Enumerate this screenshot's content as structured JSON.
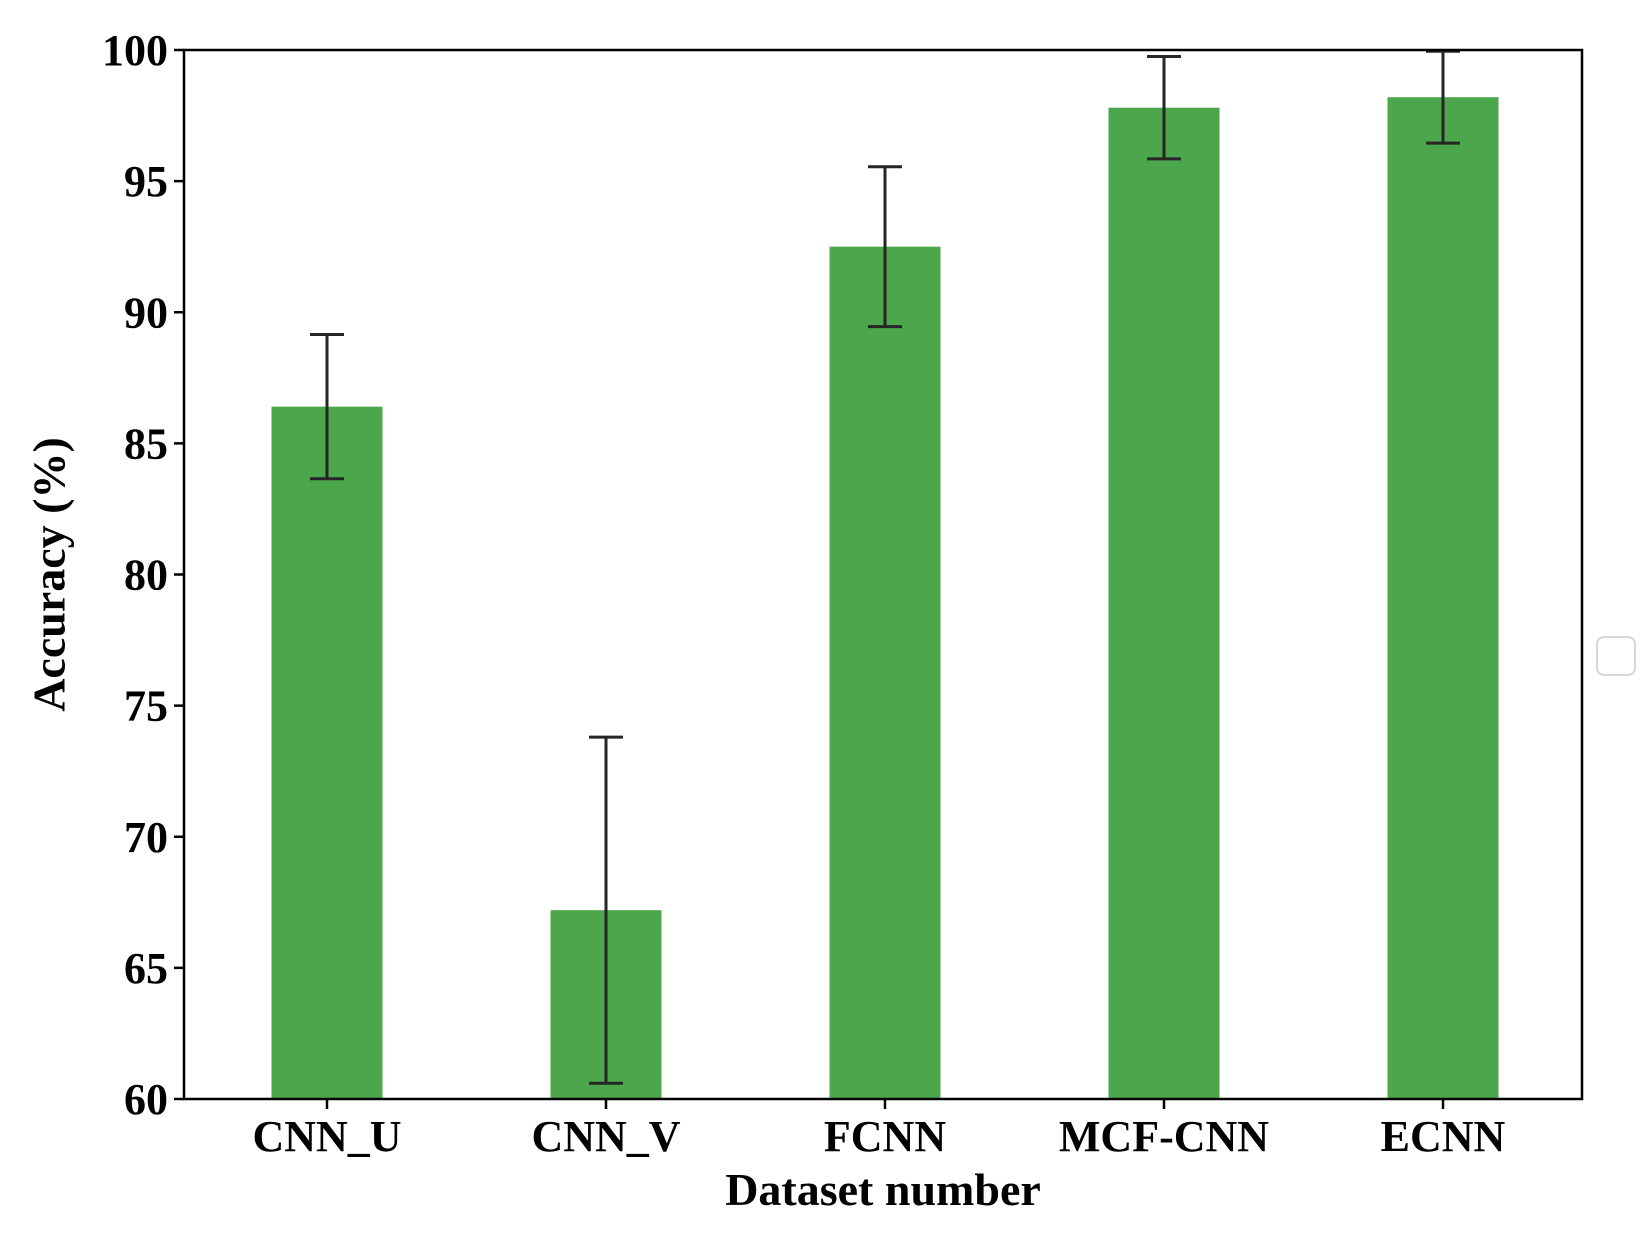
{
  "chart_data": {
    "type": "bar",
    "categories": [
      "CNN_U",
      "CNN_V",
      "FCNN",
      "MCF-CNN",
      "ECNN"
    ],
    "values": [
      86.4,
      67.2,
      92.5,
      97.8,
      98.2
    ],
    "errors": [
      2.75,
      6.6,
      3.05,
      1.95,
      1.75
    ],
    "xlabel": "Dataset number",
    "ylabel": "Accuracy (%)",
    "ylim": [
      60,
      100
    ],
    "yticks": [
      60,
      65,
      70,
      75,
      80,
      85,
      90,
      95,
      100
    ],
    "grid": false,
    "legend": "right, empty",
    "bar_color": "#4ca64c",
    "error_color": "#262626"
  }
}
